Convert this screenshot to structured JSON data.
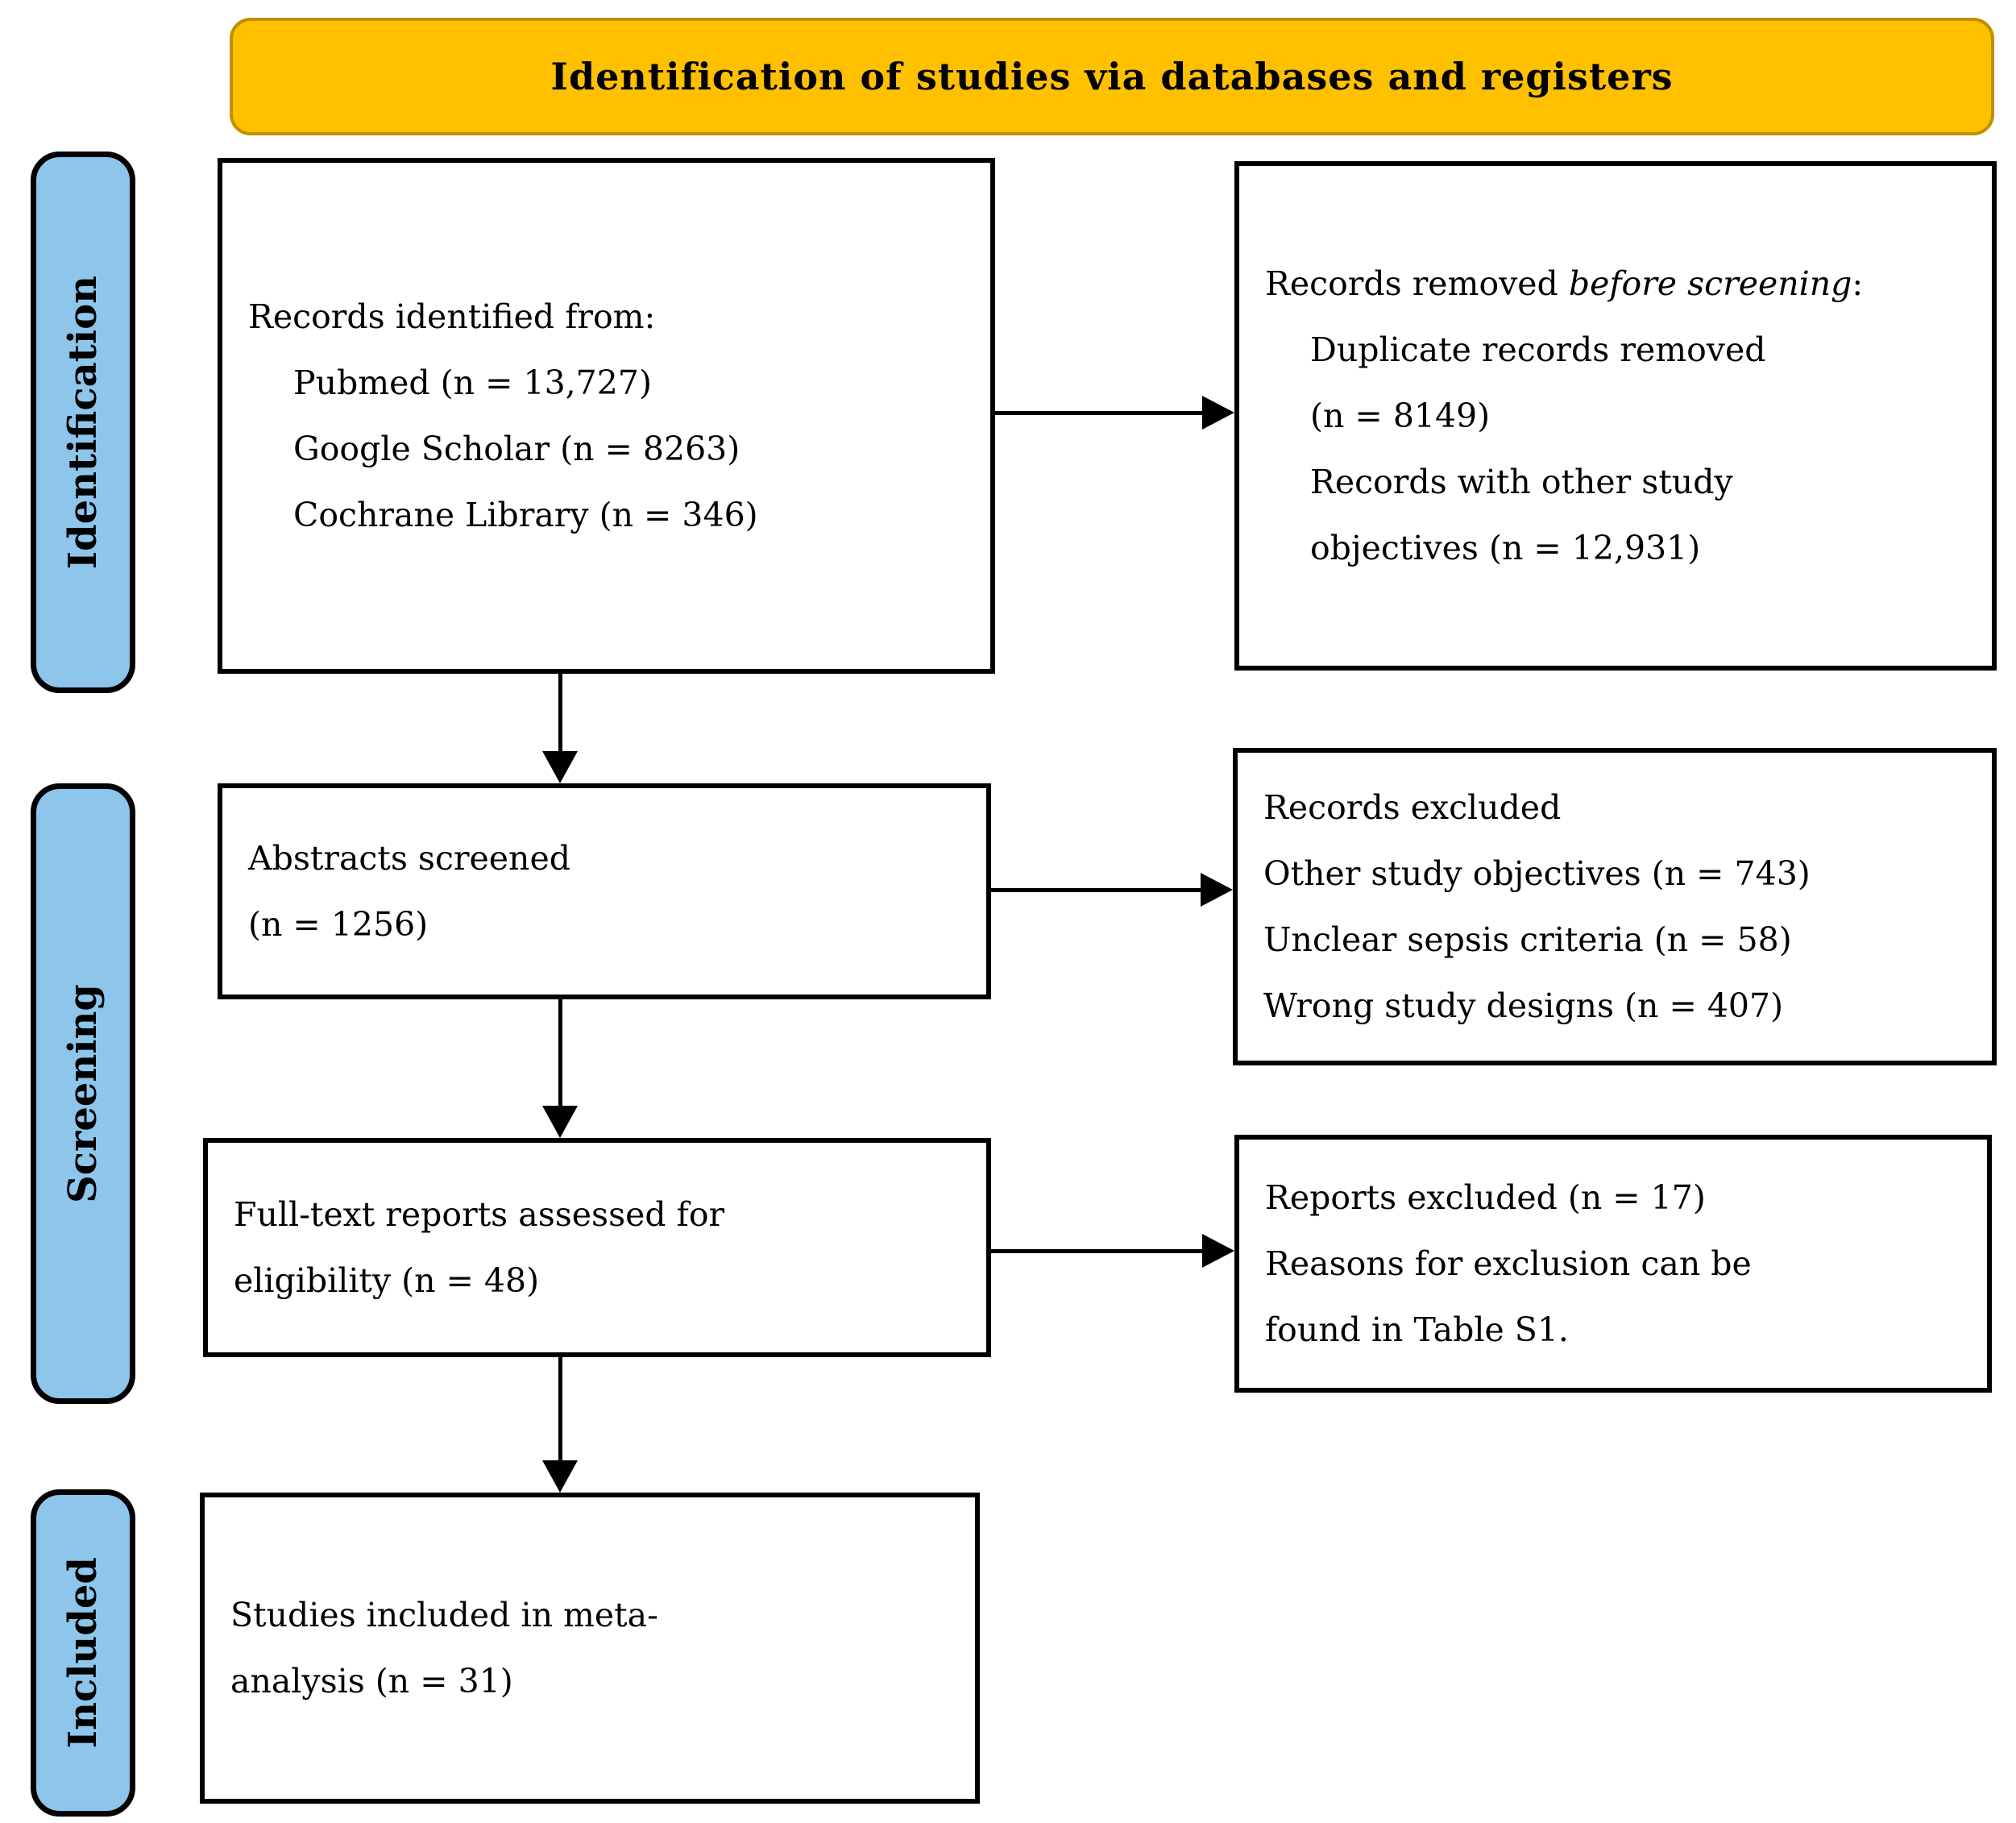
{
  "banner": {
    "title": "Identification of studies via databases and registers"
  },
  "stages": [
    {
      "label": "Identification"
    },
    {
      "label": "Screening"
    },
    {
      "label": "Included"
    }
  ],
  "boxes": [
    {
      "name": "records-identified",
      "lines": [
        {
          "indent": false,
          "segments": [
            {
              "t": "Records identified from:"
            }
          ]
        },
        {
          "indent": true,
          "segments": [
            {
              "t": "Pubmed (n = 13,727)"
            }
          ]
        },
        {
          "indent": true,
          "segments": [
            {
              "t": "Google Scholar (n = 8263)"
            }
          ]
        },
        {
          "indent": true,
          "segments": [
            {
              "t": "Cochrane Library (n = 346)"
            }
          ]
        }
      ]
    },
    {
      "name": "records-removed-before-screening",
      "lines": [
        {
          "indent": false,
          "segments": [
            {
              "t": "Records removed "
            },
            {
              "t": "before screening",
              "i": true
            },
            {
              "t": ":"
            }
          ]
        },
        {
          "indent": true,
          "segments": [
            {
              "t": "Duplicate records removed"
            }
          ]
        },
        {
          "indent": true,
          "segments": [
            {
              "t": "(n = 8149)"
            }
          ]
        },
        {
          "indent": true,
          "segments": [
            {
              "t": "Records with other study"
            }
          ]
        },
        {
          "indent": true,
          "segments": [
            {
              "t": "objectives (n = 12,931)"
            }
          ]
        }
      ]
    },
    {
      "name": "abstracts-screened",
      "lines": [
        {
          "indent": false,
          "segments": [
            {
              "t": "Abstracts screened"
            }
          ]
        },
        {
          "indent": false,
          "segments": [
            {
              "t": "(n = 1256)"
            }
          ]
        }
      ]
    },
    {
      "name": "records-excluded",
      "lines": [
        {
          "indent": false,
          "segments": [
            {
              "t": "Records excluded"
            }
          ]
        },
        {
          "indent": false,
          "segments": [
            {
              "t": "Other study objectives (n = 743)"
            }
          ]
        },
        {
          "indent": false,
          "segments": [
            {
              "t": "Unclear sepsis criteria (n = 58)"
            }
          ]
        },
        {
          "indent": false,
          "segments": [
            {
              "t": "Wrong study designs (n = 407)"
            }
          ]
        }
      ]
    },
    {
      "name": "fulltext-assessed",
      "lines": [
        {
          "indent": false,
          "segments": [
            {
              "t": "Full-text reports assessed for"
            }
          ]
        },
        {
          "indent": false,
          "segments": [
            {
              "t": "eligibility (n = 48)"
            }
          ]
        }
      ]
    },
    {
      "name": "reports-excluded",
      "lines": [
        {
          "indent": false,
          "segments": [
            {
              "t": "Reports excluded (n = 17)"
            }
          ]
        },
        {
          "indent": false,
          "segments": [
            {
              "t": "Reasons for exclusion can be"
            }
          ]
        },
        {
          "indent": false,
          "segments": [
            {
              "t": "found in Table S1."
            }
          ]
        }
      ]
    },
    {
      "name": "studies-included",
      "lines": [
        {
          "indent": false,
          "segments": [
            {
              "t": "Studies included in meta-"
            }
          ]
        },
        {
          "indent": false,
          "segments": [
            {
              "t": "analysis (n = 31)"
            }
          ]
        }
      ]
    }
  ],
  "colors": {
    "banner_bg": "#FFC000",
    "banner_border": "#BF8F00",
    "stage_bg": "#8DC5EB",
    "box_border": "#000000"
  }
}
